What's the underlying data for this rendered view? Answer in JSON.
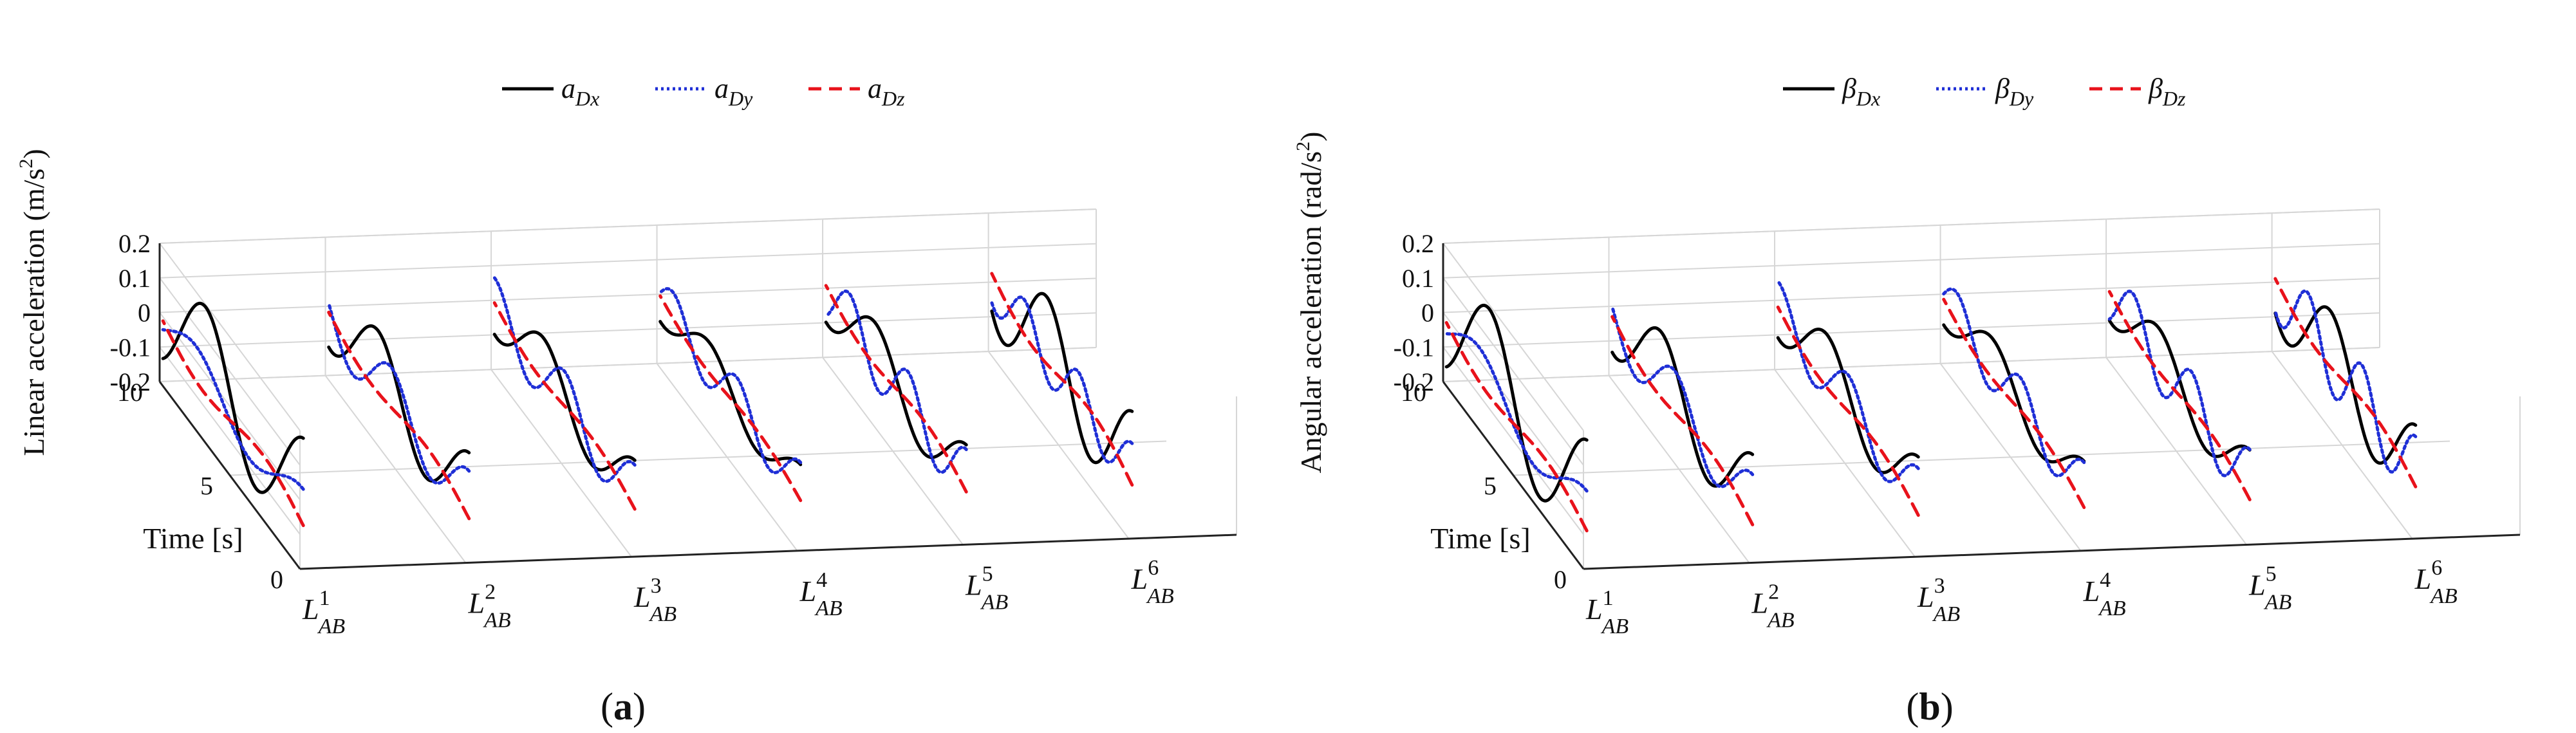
{
  "figure": {
    "panel_labels": [
      {
        "open": "(",
        "letter": "a",
        "close": ")"
      },
      {
        "open": "(",
        "letter": "b",
        "close": ")"
      }
    ]
  },
  "chart_data": [
    {
      "type": "line",
      "panel": "a",
      "zlabel": "Linear acceleration (m/s",
      "zlabel_sup": "2",
      "zlabel_end": ")",
      "time_label": "Time [s]",
      "z_ticks": [
        "0.2",
        "0.1",
        "0",
        "-0.1",
        "-0.2"
      ],
      "z_tick_values": [
        0.2,
        0.1,
        0,
        -0.1,
        -0.2
      ],
      "zlim": [
        -0.2,
        0.2
      ],
      "time_ticks": [
        "10",
        "5",
        "0"
      ],
      "time_tick_values": [
        10,
        5,
        0
      ],
      "tlim": [
        0,
        10
      ],
      "categories": [
        {
          "main": "L",
          "sup": "1",
          "sub": "AB"
        },
        {
          "main": "L",
          "sup": "2",
          "sub": "AB"
        },
        {
          "main": "L",
          "sup": "3",
          "sub": "AB"
        },
        {
          "main": "L",
          "sup": "4",
          "sub": "AB"
        },
        {
          "main": "L",
          "sup": "5",
          "sub": "AB"
        },
        {
          "main": "L",
          "sup": "6",
          "sub": "AB"
        }
      ],
      "legend": [
        {
          "symbol": "a",
          "sub": "Dx",
          "color": "#000000",
          "style": "solid"
        },
        {
          "symbol": "a",
          "sub": "Dy",
          "color": "#1f2fd6",
          "style": "dotted"
        },
        {
          "symbol": "a",
          "sub": "Dz",
          "color": "#e8121b",
          "style": "dashed"
        }
      ],
      "series": [
        {
          "name": "a_Dx",
          "amp": [
            0.165,
            0.12,
            0.09,
            0.065,
            0.095,
            0.15
          ],
          "cycles": [
            1.4,
            1.5,
            1.5,
            1.5,
            1.5,
            1.6
          ],
          "phase": [
            1.75,
            1.75,
            1.75,
            1.75,
            1.75,
            1.75
          ],
          "offset": [
            0.015,
            0.0,
            -0.01,
            -0.015,
            -0.005,
            0.02
          ]
        },
        {
          "name": "a_Dy",
          "amp": [
            0.06,
            0.085,
            0.085,
            0.07,
            0.085,
            0.075
          ],
          "cycles": [
            1.3,
            1.8,
            2.0,
            2.2,
            2.4,
            2.6
          ],
          "phase": [
            1.6,
            1.6,
            1.6,
            1.6,
            1.6,
            1.6
          ],
          "offset": [
            -0.03,
            -0.02,
            -0.02,
            -0.015,
            -0.01,
            0.0
          ]
        },
        {
          "name": "a_Dz",
          "amp": [
            0.035,
            0.028,
            0.025,
            0.02,
            0.028,
            0.035
          ],
          "cycles": [
            1.0,
            1.0,
            1.0,
            1.0,
            1.0,
            1.0
          ],
          "phase": [
            0.0,
            0.0,
            0.0,
            0.0,
            0.0,
            0.0
          ],
          "offset": [
            -0.05,
            -0.045,
            -0.035,
            -0.03,
            -0.02,
            -0.01
          ],
          "trend": [
            -0.05,
            -0.055,
            -0.055,
            -0.05,
            -0.055,
            -0.07
          ]
        }
      ]
    },
    {
      "type": "line",
      "panel": "b",
      "zlabel": "Angular acceleration (rad/s",
      "zlabel_sup": "2",
      "zlabel_end": ")",
      "time_label": "Time [s]",
      "z_ticks": [
        "0.2",
        "0.1",
        "0",
        "-0.1",
        "-0.2"
      ],
      "z_tick_values": [
        0.2,
        0.1,
        0,
        -0.1,
        -0.2
      ],
      "zlim": [
        -0.2,
        0.2
      ],
      "time_ticks": [
        "10",
        "5",
        "0"
      ],
      "time_tick_values": [
        10,
        5,
        0
      ],
      "tlim": [
        0,
        10
      ],
      "categories": [
        {
          "main": "L",
          "sup": "1",
          "sub": "AB"
        },
        {
          "main": "L",
          "sup": "2",
          "sub": "AB"
        },
        {
          "main": "L",
          "sup": "3",
          "sub": "AB"
        },
        {
          "main": "L",
          "sup": "4",
          "sub": "AB"
        },
        {
          "main": "L",
          "sup": "5",
          "sub": "AB"
        },
        {
          "main": "L",
          "sup": "6",
          "sub": "AB"
        }
      ],
      "legend": [
        {
          "symbol": "β",
          "sub": "Dx",
          "color": "#000000",
          "style": "solid"
        },
        {
          "symbol": "β",
          "sub": "Dy",
          "color": "#1f2fd6",
          "style": "dotted"
        },
        {
          "symbol": "β",
          "sub": "Dz",
          "color": "#e8121b",
          "style": "dashed"
        }
      ],
      "series": [
        {
          "name": "β_Dx",
          "amp": [
            0.175,
            0.125,
            0.1,
            0.075,
            0.085,
            0.13
          ],
          "cycles": [
            1.4,
            1.5,
            1.5,
            1.5,
            1.5,
            1.6
          ],
          "phase": [
            1.75,
            1.75,
            1.75,
            1.75,
            1.75,
            1.75
          ],
          "offset": [
            0.0,
            -0.01,
            -0.01,
            -0.015,
            -0.01,
            0.0
          ]
        },
        {
          "name": "β_Dy",
          "amp": [
            0.065,
            0.085,
            0.08,
            0.075,
            0.09,
            0.1
          ],
          "cycles": [
            1.3,
            1.8,
            2.0,
            2.2,
            2.4,
            2.6
          ],
          "phase": [
            1.6,
            1.6,
            1.6,
            1.6,
            1.6,
            1.6
          ],
          "offset": [
            -0.04,
            -0.03,
            -0.025,
            -0.02,
            -0.015,
            -0.005
          ]
        },
        {
          "name": "β_Dz",
          "amp": [
            0.03,
            0.03,
            0.028,
            0.025,
            0.025,
            0.03
          ],
          "cycles": [
            1.0,
            1.0,
            1.0,
            1.0,
            1.0,
            1.0
          ],
          "phase": [
            0.0,
            0.0,
            0.0,
            0.0,
            0.0,
            0.0
          ],
          "offset": [
            -0.06,
            -0.06,
            -0.05,
            -0.045,
            -0.04,
            -0.02
          ],
          "trend": [
            -0.06,
            -0.06,
            -0.06,
            -0.06,
            -0.06,
            -0.06
          ]
        }
      ]
    }
  ]
}
